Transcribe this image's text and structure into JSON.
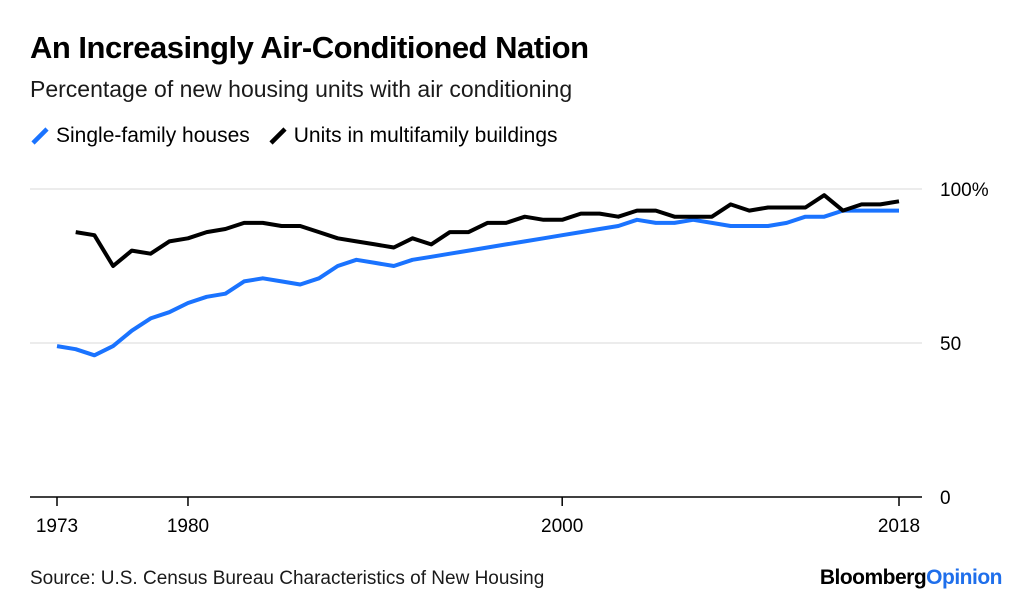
{
  "header": {
    "title": "An Increasingly Air-Conditioned Nation",
    "subtitle": "Percentage of new housing units with air conditioning"
  },
  "footer": {
    "source": "Source: U.S. Census Bureau Characteristics of New Housing",
    "brand_part1": "Bloomberg",
    "brand_part2": "Opinion"
  },
  "colors": {
    "single_family": "#1a73ff",
    "multifamily": "#000000",
    "grid": "#e6e6e6",
    "axis": "#000000",
    "brand_accent": "#1f6feb"
  },
  "chart_data": {
    "type": "line",
    "title": "An Increasingly Air-Conditioned Nation",
    "subtitle": "Percentage of new housing units with air conditioning",
    "xlim": [
      1973,
      2018
    ],
    "ylim": [
      0,
      100
    ],
    "x_ticks": [
      1973,
      1980,
      2000,
      2018
    ],
    "y_ticks": [
      {
        "value": 0,
        "label": "0"
      },
      {
        "value": 50,
        "label": "50"
      },
      {
        "value": 100,
        "label": "100%"
      }
    ],
    "y_axis_side": "right",
    "grid": true,
    "legend_position": "top-left",
    "series": [
      {
        "name": "Single-family houses",
        "color": "#1a73ff",
        "x": [
          1973,
          1974,
          1975,
          1976,
          1977,
          1978,
          1979,
          1980,
          1981,
          1982,
          1983,
          1984,
          1985,
          1986,
          1987,
          1988,
          1989,
          1990,
          1991,
          1992,
          1993,
          1994,
          1995,
          1996,
          1997,
          1998,
          1999,
          2000,
          2001,
          2002,
          2003,
          2004,
          2005,
          2006,
          2007,
          2008,
          2009,
          2010,
          2011,
          2012,
          2013,
          2014,
          2015,
          2016,
          2017,
          2018
        ],
        "values": [
          49,
          48,
          46,
          49,
          54,
          58,
          60,
          63,
          65,
          66,
          70,
          71,
          70,
          69,
          71,
          75,
          77,
          76,
          75,
          77,
          78,
          79,
          80,
          81,
          82,
          83,
          84,
          85,
          86,
          87,
          88,
          90,
          89,
          89,
          90,
          89,
          88,
          88,
          88,
          89,
          91,
          91,
          93,
          93,
          93,
          93
        ]
      },
      {
        "name": "Units in multifamily buildings",
        "color": "#000000",
        "x": [
          1974,
          1975,
          1976,
          1977,
          1978,
          1979,
          1980,
          1981,
          1982,
          1983,
          1984,
          1985,
          1986,
          1987,
          1988,
          1989,
          1990,
          1991,
          1992,
          1993,
          1994,
          1995,
          1996,
          1997,
          1998,
          1999,
          2000,
          2001,
          2002,
          2003,
          2004,
          2005,
          2006,
          2007,
          2008,
          2009,
          2010,
          2011,
          2012,
          2013,
          2014,
          2015,
          2016,
          2017,
          2018
        ],
        "values": [
          86,
          85,
          75,
          80,
          79,
          83,
          84,
          86,
          87,
          89,
          89,
          88,
          88,
          86,
          84,
          83,
          82,
          81,
          84,
          82,
          86,
          86,
          89,
          89,
          91,
          90,
          90,
          92,
          92,
          91,
          93,
          93,
          91,
          91,
          91,
          95,
          93,
          94,
          94,
          94,
          98,
          93,
          95,
          95,
          96
        ]
      }
    ]
  }
}
